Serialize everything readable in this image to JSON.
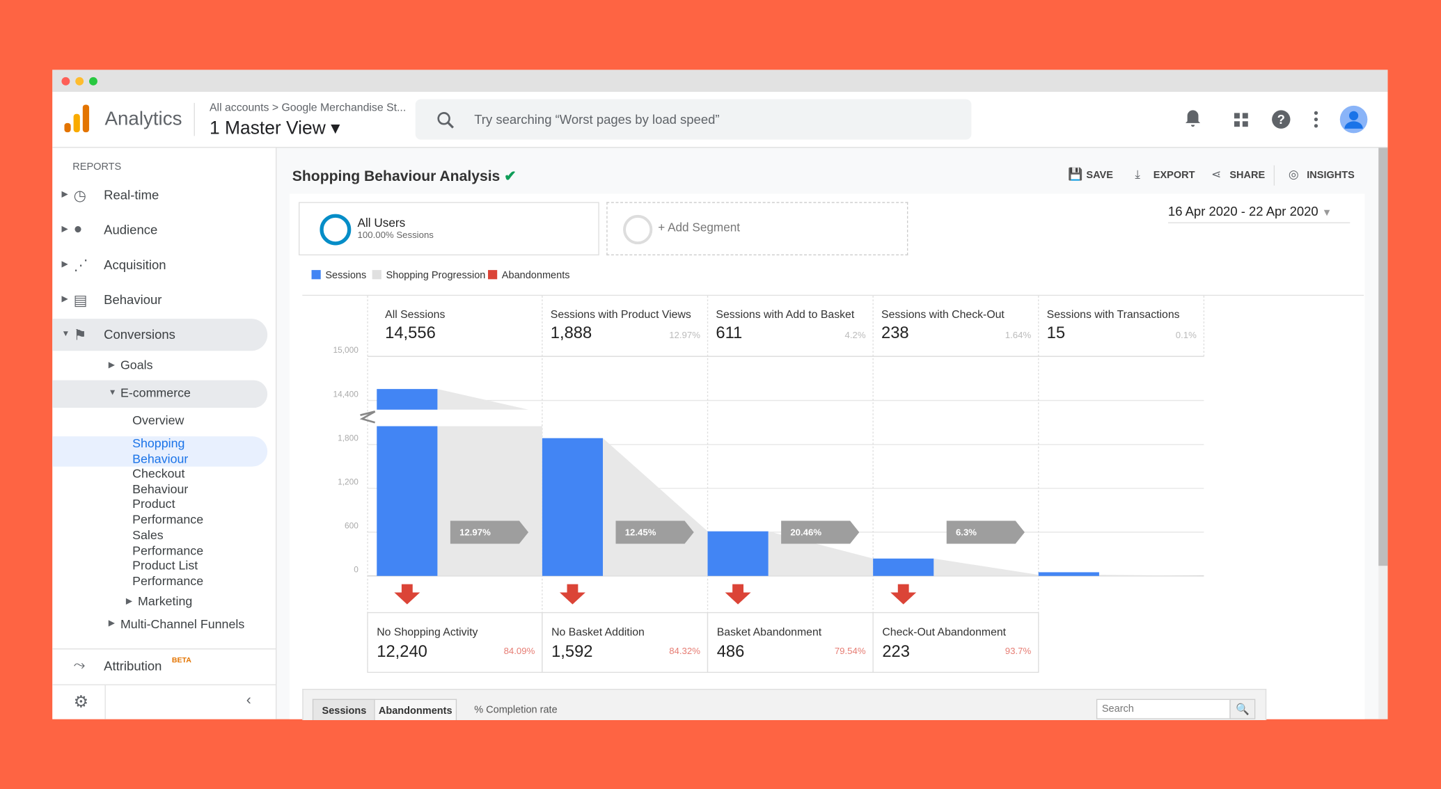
{
  "header": {
    "app": "Analytics",
    "breadcrumb": [
      "All accounts",
      "Google Merchandise St..."
    ],
    "view": "1 Master View",
    "search_placeholder": "Try searching “Worst pages by load speed”"
  },
  "sidebar": {
    "section": "REPORTS",
    "items": [
      "Real-time",
      "Audience",
      "Acquisition",
      "Behaviour",
      "Conversions",
      "Goals",
      "E-commerce",
      "Overview",
      "Shopping Behaviour",
      "Checkout Behaviour",
      "Product Performance",
      "Sales Performance",
      "Product List Performance",
      "Marketing",
      "Multi-Channel Funnels"
    ],
    "attribution": "Attribution",
    "beta": "BETA"
  },
  "report": {
    "title": "Shopping Behaviour Analysis",
    "actions": [
      "SAVE",
      "EXPORT",
      "SHARE",
      "INSIGHTS"
    ],
    "segment": {
      "name": "All Users",
      "detail": "100.00% Sessions"
    },
    "add_segment": "+ Add Segment",
    "date_range": "16 Apr 2020 - 22 Apr 2020"
  },
  "legend": [
    "Sessions",
    "Shopping Progression",
    "Abandonments"
  ],
  "funnel": {
    "stages": [
      {
        "name": "All Sessions",
        "value": 14556,
        "value_label": "14,556"
      },
      {
        "name": "Sessions with Product Views",
        "value": 1888,
        "value_label": "1,888",
        "share": "12.97%"
      },
      {
        "name": "Sessions with Add to Basket",
        "value": 611,
        "value_label": "611",
        "share": "4.2%"
      },
      {
        "name": "Sessions with Check-Out",
        "value": 238,
        "value_label": "238",
        "share": "1.64%"
      },
      {
        "name": "Sessions with Transactions",
        "value": 15,
        "value_label": "15",
        "share": "0.1%"
      }
    ],
    "completion_rates": [
      "12.97%",
      "12.45%",
      "20.46%",
      "6.3%"
    ],
    "abandonments": [
      {
        "name": "No Shopping Activity",
        "value_label": "12,240",
        "share": "84.09%"
      },
      {
        "name": "No Basket Addition",
        "value_label": "1,592",
        "share": "84.32%"
      },
      {
        "name": "Basket Abandonment",
        "value_label": "486",
        "share": "79.54%"
      },
      {
        "name": "Check-Out Abandonment",
        "value_label": "223",
        "share": "93.7%"
      }
    ],
    "yticks": [
      {
        "value": 0,
        "label": "0"
      },
      {
        "value": 600,
        "label": "600"
      },
      {
        "value": 1200,
        "label": "1,200"
      },
      {
        "value": 1800,
        "label": "1,800"
      },
      {
        "value": 14400,
        "label": "14,400"
      },
      {
        "value": 15000,
        "label": "15,000"
      }
    ]
  },
  "table": {
    "tabs": [
      "Sessions",
      "Abandonments"
    ],
    "column": "% Completion rate",
    "search": "Search"
  }
}
